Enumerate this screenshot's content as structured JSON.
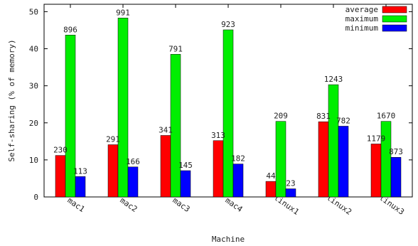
{
  "chart_data": {
    "type": "bar",
    "title": "",
    "xlabel": "Machine",
    "ylabel": "Self-sharing (% of memory)",
    "ylim": [
      0,
      52
    ],
    "yticks": [
      0,
      10,
      20,
      30,
      40,
      50
    ],
    "grid": false,
    "legend_position": "top-right",
    "categories": [
      "mac1",
      "mac2",
      "mac3",
      "mac4",
      "linux1",
      "linux2",
      "linux3"
    ],
    "series": [
      {
        "name": "average",
        "color": "#ff0000",
        "values": [
          11.2,
          14.1,
          16.6,
          15.2,
          4.2,
          20.3,
          14.3
        ],
        "labels": [
          "230",
          "291",
          "341",
          "313",
          "44",
          "831",
          "1179"
        ]
      },
      {
        "name": "maximum",
        "color": "#00ee00",
        "values": [
          43.7,
          48.3,
          38.5,
          45.1,
          20.4,
          30.3,
          20.4
        ],
        "labels": [
          "896",
          "991",
          "791",
          "923",
          "209",
          "1243",
          "1670"
        ]
      },
      {
        "name": "minimum",
        "color": "#0000ff",
        "values": [
          5.5,
          8.1,
          7.1,
          8.9,
          2.2,
          19.1,
          10.7
        ],
        "labels": [
          "113",
          "166",
          "145",
          "182",
          "23",
          "782",
          "873"
        ]
      }
    ]
  }
}
